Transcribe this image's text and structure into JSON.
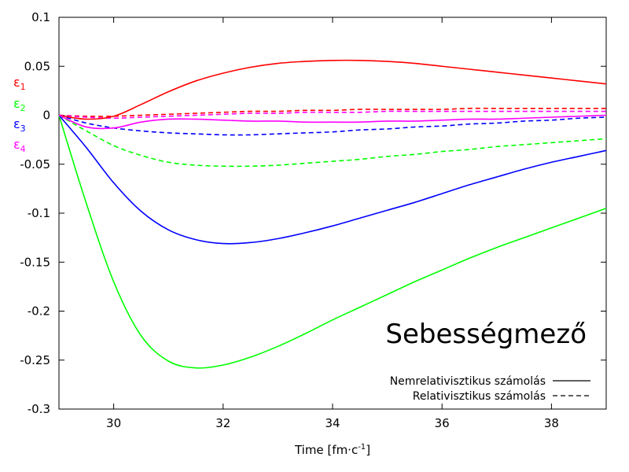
{
  "chart_data": {
    "type": "line",
    "title": "Sebességmező",
    "xlabel": {
      "base": "Time [fm·c",
      "sup": "-1",
      "tail": "]"
    },
    "ylabel": "",
    "xlim": [
      29,
      39
    ],
    "ylim": [
      -0.3,
      0.1
    ],
    "x_ticks": [
      30,
      32,
      34,
      36,
      38
    ],
    "x_tick_labels": [
      "30",
      "32",
      "34",
      "36",
      "38"
    ],
    "y_ticks": [
      0.1,
      0.05,
      0,
      -0.05,
      -0.1,
      -0.15,
      -0.2,
      -0.25,
      -0.3
    ],
    "y_tick_labels": [
      "0.1",
      "0.05",
      "0",
      "-0.05",
      "-0.1",
      "-0.15",
      "-0.2",
      "-0.25",
      "-0.3"
    ],
    "grid": false,
    "colors": {
      "eps1": "#ff0000",
      "eps2": "#00ff00",
      "eps3": "#0000ff",
      "eps4": "#ff00ff"
    },
    "side_labels": [
      {
        "base": "ε",
        "sub": "1",
        "color": "#ff0000"
      },
      {
        "base": "ε",
        "sub": "2",
        "color": "#00ff00"
      },
      {
        "base": "ε",
        "sub": "3",
        "color": "#0000ff"
      },
      {
        "base": "ε",
        "sub": "4",
        "color": "#ff00ff"
      }
    ],
    "legend": {
      "position": "bottom-right",
      "entries": [
        {
          "label": "Nemrelativisztikus számolás",
          "style": "solid"
        },
        {
          "label": "Relativisztikus számolás",
          "style": "dashed"
        }
      ]
    },
    "series": [
      {
        "key": "eps1_nonrel",
        "color": "#ff0000",
        "style": "solid",
        "x": [
          29,
          29.5,
          30,
          30.5,
          31,
          31.5,
          32,
          32.5,
          33,
          33.5,
          34,
          34.5,
          35,
          35.5,
          36,
          36.5,
          37,
          37.5,
          38,
          38.5,
          39
        ],
        "y": [
          0,
          -0.004,
          -0.001,
          0.011,
          0.024,
          0.035,
          0.043,
          0.049,
          0.053,
          0.055,
          0.056,
          0.056,
          0.055,
          0.053,
          0.05,
          0.047,
          0.044,
          0.041,
          0.038,
          0.035,
          0.032
        ]
      },
      {
        "key": "eps2_nonrel",
        "color": "#00ff00",
        "style": "solid",
        "x": [
          29,
          29.5,
          30,
          30.5,
          31,
          31.5,
          32,
          32.5,
          33,
          33.5,
          34,
          34.5,
          35,
          35.5,
          36,
          36.5,
          37,
          37.5,
          38,
          38.5,
          39
        ],
        "y": [
          0,
          -0.09,
          -0.17,
          -0.225,
          -0.251,
          -0.258,
          -0.255,
          -0.247,
          -0.236,
          -0.223,
          -0.209,
          -0.196,
          -0.183,
          -0.17,
          -0.158,
          -0.146,
          -0.135,
          -0.125,
          -0.115,
          -0.105,
          -0.095
        ]
      },
      {
        "key": "eps3_nonrel",
        "color": "#0000ff",
        "style": "solid",
        "x": [
          29,
          29.5,
          30,
          30.5,
          31,
          31.5,
          32,
          32.5,
          33,
          33.5,
          34,
          34.5,
          35,
          35.5,
          36,
          36.5,
          37,
          37.5,
          38,
          38.5,
          39
        ],
        "y": [
          0,
          -0.033,
          -0.069,
          -0.098,
          -0.117,
          -0.127,
          -0.131,
          -0.13,
          -0.126,
          -0.12,
          -0.113,
          -0.105,
          -0.097,
          -0.089,
          -0.08,
          -0.071,
          -0.063,
          -0.055,
          -0.048,
          -0.042,
          -0.036
        ]
      },
      {
        "key": "eps4_nonrel",
        "color": "#ff00ff",
        "style": "solid",
        "x": [
          29,
          29.5,
          30,
          30.5,
          31,
          31.5,
          32,
          32.5,
          33,
          33.5,
          34,
          34.5,
          35,
          35.5,
          36,
          36.5,
          37,
          37.5,
          38,
          38.5,
          39
        ],
        "y": [
          0,
          -0.012,
          -0.013,
          -0.007,
          -0.004,
          -0.004,
          -0.005,
          -0.006,
          -0.006,
          -0.007,
          -0.007,
          -0.007,
          -0.006,
          -0.006,
          -0.005,
          -0.004,
          -0.004,
          -0.003,
          -0.002,
          -0.001,
          0
        ]
      },
      {
        "key": "eps1_rel",
        "color": "#ff0000",
        "style": "dashed",
        "x": [
          29,
          29.5,
          30,
          30.5,
          31,
          31.5,
          32,
          32.5,
          33,
          33.5,
          34,
          34.5,
          35,
          35.5,
          36,
          36.5,
          37,
          37.5,
          38,
          38.5,
          39
        ],
        "y": [
          0,
          -0.001,
          -0.001,
          0,
          0.001,
          0.002,
          0.003,
          0.004,
          0.004,
          0.005,
          0.005,
          0.006,
          0.006,
          0.006,
          0.006,
          0.007,
          0.007,
          0.007,
          0.007,
          0.007,
          0.007
        ]
      },
      {
        "key": "eps2_rel",
        "color": "#00ff00",
        "style": "dashed",
        "x": [
          29,
          29.5,
          30,
          30.5,
          31,
          31.5,
          32,
          32.5,
          33,
          33.5,
          34,
          34.5,
          35,
          35.5,
          36,
          36.5,
          37,
          37.5,
          38,
          38.5,
          39
        ],
        "y": [
          0,
          -0.016,
          -0.031,
          -0.041,
          -0.048,
          -0.051,
          -0.052,
          -0.052,
          -0.051,
          -0.049,
          -0.047,
          -0.045,
          -0.042,
          -0.04,
          -0.037,
          -0.035,
          -0.032,
          -0.03,
          -0.028,
          -0.026,
          -0.024
        ]
      },
      {
        "key": "eps3_rel",
        "color": "#0000ff",
        "style": "dashed",
        "x": [
          29,
          29.5,
          30,
          30.5,
          31,
          31.5,
          32,
          32.5,
          33,
          33.5,
          34,
          34.5,
          35,
          35.5,
          36,
          36.5,
          37,
          37.5,
          38,
          38.5,
          39
        ],
        "y": [
          0,
          -0.008,
          -0.013,
          -0.016,
          -0.018,
          -0.019,
          -0.02,
          -0.02,
          -0.019,
          -0.018,
          -0.017,
          -0.015,
          -0.014,
          -0.012,
          -0.011,
          -0.009,
          -0.008,
          -0.006,
          -0.005,
          -0.003,
          -0.002
        ]
      },
      {
        "key": "eps4_rel",
        "color": "#ff00ff",
        "style": "dashed",
        "x": [
          29,
          29.5,
          30,
          30.5,
          31,
          31.5,
          32,
          32.5,
          33,
          33.5,
          34,
          34.5,
          35,
          35.5,
          36,
          36.5,
          37,
          37.5,
          38,
          38.5,
          39
        ],
        "y": [
          0,
          -0.002,
          -0.003,
          -0.002,
          -0.001,
          0,
          0.001,
          0.002,
          0.002,
          0.003,
          0.003,
          0.003,
          0.004,
          0.004,
          0.004,
          0.004,
          0.004,
          0.004,
          0.004,
          0.004,
          0.004
        ]
      }
    ]
  }
}
